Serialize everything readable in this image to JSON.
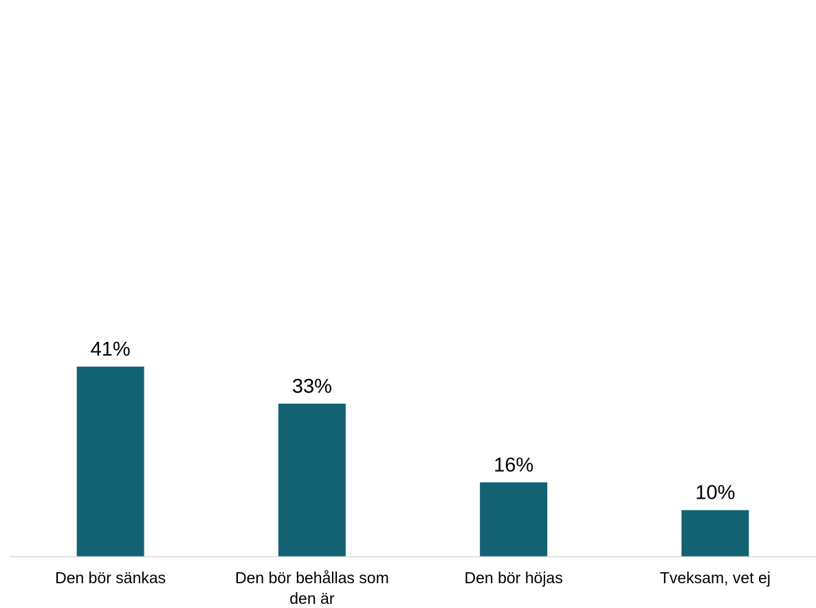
{
  "chart_data": {
    "type": "bar",
    "title": "",
    "xlabel": "",
    "ylabel": "",
    "categories": [
      [
        "Den bör sänkas"
      ],
      [
        "Den bör behållas som",
        "den är"
      ],
      [
        "Den bör höjas"
      ],
      [
        "Tveksam, vet ej"
      ]
    ],
    "values": [
      41,
      33,
      16,
      10
    ],
    "value_labels": [
      "41%",
      "33%",
      "16%",
      "10%"
    ],
    "unit": "%",
    "ylim": [
      0,
      100
    ],
    "grid": false,
    "legend": "none",
    "bar_color": "#136273",
    "axis_color": "#d9d9d9"
  }
}
